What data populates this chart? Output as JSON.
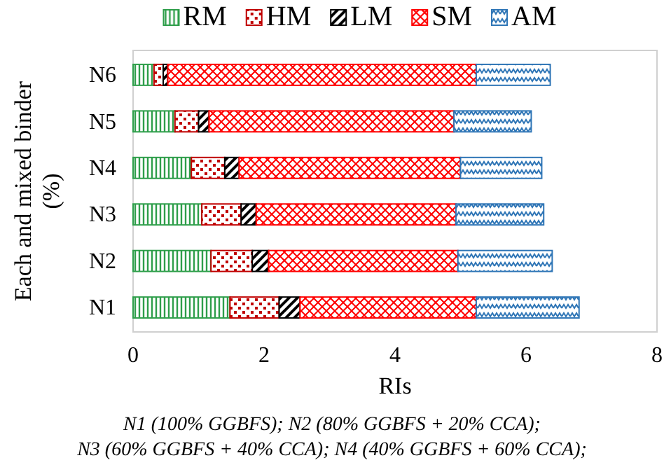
{
  "chart_data": {
    "type": "bar",
    "orientation": "horizontal",
    "stacked": true,
    "xlabel": "RIs",
    "ylabel": "Each and mixed binder (%)",
    "categories": [
      "N6",
      "N5",
      "N4",
      "N3",
      "N2",
      "N1"
    ],
    "series": [
      {
        "name": "RM",
        "color": "#2e9e4a",
        "values": [
          0.32,
          0.64,
          0.89,
          1.05,
          1.19,
          1.48
        ]
      },
      {
        "name": "HM",
        "color": "#c00000",
        "values": [
          0.14,
          0.36,
          0.51,
          0.6,
          0.63,
          0.75
        ]
      },
      {
        "name": "LM",
        "color": "#000000",
        "values": [
          0.07,
          0.16,
          0.22,
          0.23,
          0.25,
          0.32
        ]
      },
      {
        "name": "SM",
        "color": "#ff0000",
        "values": [
          4.71,
          3.74,
          3.38,
          3.05,
          2.89,
          2.69
        ]
      },
      {
        "name": "AM",
        "color": "#2e75b6",
        "values": [
          1.13,
          1.18,
          1.24,
          1.34,
          1.44,
          1.57
        ]
      }
    ],
    "xlim": [
      0,
      8
    ],
    "xticks": [
      0,
      2,
      4,
      6,
      8
    ],
    "legend": "top",
    "annotations": [
      "N1 (100% GGBFS); N2 (80% GGBFS + 20% CCA);",
      "N3 (60% GGBFS + 40% CCA); N4 (40% GGBFS + 60% CCA);"
    ]
  }
}
